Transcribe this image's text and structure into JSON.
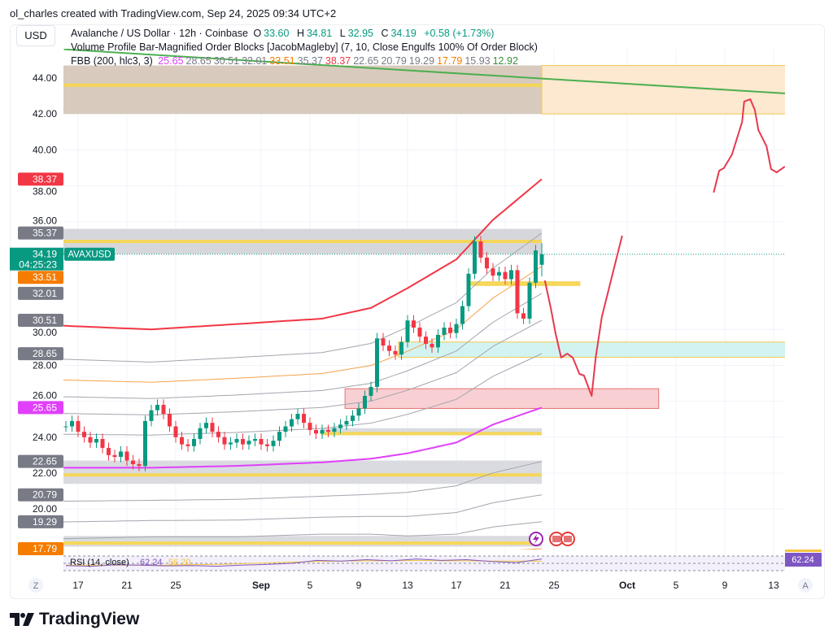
{
  "credit": "ol_charles created with TradingView.com, Sep 24, 2025 09:34 UTC+2",
  "currency_button": "USD",
  "legend": {
    "symbol": "Avalanche / US Dollar · 12h · Coinbase",
    "o_label": "O",
    "o": "33.60",
    "h_label": "H",
    "h": "34.81",
    "l_label": "L",
    "l": "32.95",
    "c_label": "C",
    "c": "34.19",
    "change": "+0.58 (+1.73%)",
    "indicator2": "Volume Profile Bar-Magnified Order Blocks [JacobMagleby] (7, 10, Close Engulfs 100% Of Order Block)",
    "fbb_label": "FBB (200, hlc3, 3)",
    "fbb_values": [
      {
        "v": "25.65",
        "color": "#e040fb"
      },
      {
        "v": "28.65",
        "color": "#787b86"
      },
      {
        "v": "30.51",
        "color": "#787b86"
      },
      {
        "v": "32.01",
        "color": "#787b86"
      },
      {
        "v": "33.51",
        "color": "#f57c00"
      },
      {
        "v": "35.37",
        "color": "#787b86"
      },
      {
        "v": "38.37",
        "color": "#f23645"
      },
      {
        "v": "22.65",
        "color": "#787b86"
      },
      {
        "v": "20.79",
        "color": "#787b86"
      },
      {
        "v": "19.29",
        "color": "#787b86"
      },
      {
        "v": "17.79",
        "color": "#f57c00"
      },
      {
        "v": "15.93",
        "color": "#787b86"
      },
      {
        "v": "12.92",
        "color": "#388e3c"
      }
    ]
  },
  "price_axis": {
    "ticks": [
      "44.00",
      "42.00",
      "40.00",
      "38.00",
      "36.00",
      "30.00",
      "28.00",
      "26.00",
      "24.00",
      "22.00",
      "20.00"
    ],
    "tags": [
      {
        "text": "38.37",
        "price": 38.37,
        "color": "#f23645"
      },
      {
        "text": "35.37",
        "price": 35.37,
        "color": "#787b86"
      },
      {
        "text": "33.51",
        "price": 33.51,
        "color": "#f57c00"
      },
      {
        "text": "32.01",
        "price": 32.01,
        "color": "#787b86"
      },
      {
        "text": "30.51",
        "price": 30.51,
        "color": "#787b86"
      },
      {
        "text": "28.65",
        "price": 28.65,
        "color": "#787b86"
      },
      {
        "text": "25.65",
        "price": 25.65,
        "color": "#e040fb"
      },
      {
        "text": "22.65",
        "price": 22.65,
        "color": "#787b86"
      },
      {
        "text": "20.79",
        "price": 20.79,
        "color": "#787b86"
      },
      {
        "text": "19.29",
        "price": 19.29,
        "color": "#787b86"
      },
      {
        "text": "17.79",
        "price": 17.79,
        "color": "#f57c00"
      }
    ],
    "last_price": "34.19",
    "countdown": "04:25:23",
    "symbol_tag": "AVAXUSD"
  },
  "time_axis": {
    "labels": [
      {
        "text": "17",
        "date": "2025-08-17"
      },
      {
        "text": "21",
        "date": "2025-08-21"
      },
      {
        "text": "25",
        "date": "2025-08-25"
      },
      {
        "text": "Sep",
        "date": "2025-09-01",
        "bold": true
      },
      {
        "text": "5",
        "date": "2025-09-05"
      },
      {
        "text": "9",
        "date": "2025-09-09"
      },
      {
        "text": "13",
        "date": "2025-09-13"
      },
      {
        "text": "17",
        "date": "2025-09-17"
      },
      {
        "text": "21",
        "date": "2025-09-21"
      },
      {
        "text": "25",
        "date": "2025-09-25"
      },
      {
        "text": "Oct",
        "date": "2025-10-01",
        "bold": true
      },
      {
        "text": "5",
        "date": "2025-10-05"
      },
      {
        "text": "9",
        "date": "2025-10-09"
      },
      {
        "text": "13",
        "date": "2025-10-13"
      }
    ],
    "left_button": "Z",
    "right_button": "A"
  },
  "rsi": {
    "label": "RSI (14, close)",
    "value": "62.24",
    "ma_value": "56.20",
    "axis_value": "62.24"
  },
  "brand": "TradingView",
  "colors": {
    "up": "#089981",
    "down": "#f23645",
    "basis": "#e040fb",
    "upper": "#f23645",
    "mid": "#f5a34a",
    "band": "#a3a6af",
    "trend": "#4caf50",
    "drawing": "#e63950",
    "rsi": "#7e57c2"
  },
  "chart_data": {
    "type": "candlestick",
    "ylim": [
      17.5,
      45.5
    ],
    "xlim": [
      "2025-08-15T20:00",
      "2025-10-15T00:00"
    ],
    "grid": true,
    "candles": {
      "start": "2025-08-16T00:00",
      "interval": "12h",
      "close": [
        24.6,
        24.9,
        24.3,
        24.0,
        23.7,
        23.9,
        23.4,
        23.0,
        22.9,
        23.2,
        22.7,
        22.5,
        22.4,
        24.9,
        25.5,
        25.8,
        25.3,
        24.6,
        24.0,
        23.6,
        23.5,
        23.9,
        24.5,
        24.8,
        24.3,
        24.0,
        23.6,
        23.7,
        23.9,
        23.6,
        23.8,
        23.9,
        23.6,
        23.5,
        23.8,
        24.3,
        24.6,
        25.0,
        25.3,
        24.8,
        24.4,
        24.2,
        24.4,
        24.3,
        24.5,
        24.7,
        24.9,
        25.2,
        25.6,
        26.3,
        26.8,
        29.5,
        29.1,
        28.8,
        28.6,
        29.3,
        30.5,
        30.1,
        29.6,
        29.2,
        29.0,
        29.7,
        30.1,
        29.8,
        30.3,
        31.3,
        33.1,
        34.9,
        34.0,
        33.4,
        33.0,
        33.2,
        32.8,
        33.3,
        30.9,
        30.6,
        32.6,
        34.4,
        33.6
      ],
      "last": {
        "open": 33.6,
        "high": 34.81,
        "low": 32.95,
        "close": 34.19
      }
    },
    "fbb": {
      "dates": [
        "2025-08-16",
        "2025-08-23",
        "2025-08-30",
        "2025-09-06",
        "2025-09-10",
        "2025-09-13",
        "2025-09-17",
        "2025-09-20",
        "2025-09-24"
      ],
      "basis": [
        22.3,
        22.3,
        22.4,
        22.6,
        22.8,
        23.1,
        23.7,
        24.7,
        25.65
      ],
      "deviation": [
        7.9,
        7.7,
        7.9,
        8.0,
        8.4,
        9.2,
        10.2,
        11.4,
        12.72
      ],
      "ratios": [
        0.236,
        0.382,
        0.5,
        0.618,
        0.764,
        1.0
      ]
    },
    "trendline": {
      "from": [
        "2025-08-15T20:00",
        45.6
      ],
      "to": [
        "2025-10-15T00:00",
        43.1
      ]
    },
    "order_blocks": [
      {
        "from": "2025-08-10T00:00",
        "to": "2025-09-24T00:00",
        "top": 44.7,
        "bottom": 42.0,
        "color": "#d8cbbd",
        "line": 43.6
      },
      {
        "from": "2025-09-24T00:00",
        "to": "2025-10-20T00:00",
        "top": 44.7,
        "bottom": 42.0,
        "color": "#fde9d0"
      },
      {
        "from": "2025-08-10T00:00",
        "to": "2025-09-24T00:00",
        "top": 35.6,
        "bottom": 34.2,
        "color": "#d6d7db",
        "line": 34.9
      },
      {
        "from": "2025-09-18T03:00",
        "to": "2025-09-27T03:00",
        "top": 32.65,
        "bottom": 32.45,
        "color": "#fff3c4",
        "line": 32.55
      },
      {
        "from": "2025-09-12T06:00",
        "to": "2025-10-20T00:00",
        "top": 29.3,
        "bottom": 28.45,
        "color": "#d3f3f1"
      },
      {
        "from": "2025-09-07T21:00",
        "to": "2025-10-03T14:00",
        "top": 26.7,
        "bottom": 25.6,
        "color": "#f8cfd2"
      },
      {
        "from": "2025-09-05T22:00",
        "to": "2025-09-24T00:00",
        "top": 24.5,
        "bottom": 24.1,
        "color": "#dadbe0",
        "line": 24.2
      },
      {
        "from": "2025-08-10T00:00",
        "to": "2025-09-24T00:00",
        "top": 22.7,
        "bottom": 21.4,
        "color": "#dadbe0",
        "line": 21.9
      },
      {
        "from": "2025-08-10T00:00",
        "to": "2025-09-24T00:00",
        "top": 18.5,
        "bottom": 17.9,
        "color": "#dadbe0",
        "line": 18.1
      }
    ],
    "drawings": [
      [
        [
          "2025-09-24T06:00",
          32.73
        ],
        [
          "2025-09-24T18:00",
          31.14
        ],
        [
          "2025-09-25T03:00",
          29.79
        ],
        [
          "2025-09-25T14:00",
          28.43
        ],
        [
          "2025-09-26T02:00",
          28.65
        ],
        [
          "2025-09-26T13:00",
          28.43
        ],
        [
          "2025-09-27T02:00",
          27.52
        ],
        [
          "2025-09-27T11:00",
          27.43
        ],
        [
          "2025-09-28T02:00",
          26.3
        ],
        [
          "2025-09-28T10:00",
          28.43
        ],
        [
          "2025-09-28T22:00",
          30.69
        ],
        [
          "2025-09-29T22:00",
          33.41
        ],
        [
          "2025-09-30T14:00",
          35.22
        ]
      ],
      [
        [
          "2025-10-08T02:00",
          37.62
        ],
        [
          "2025-10-08T13:00",
          38.84
        ],
        [
          "2025-10-08T22:00",
          38.98
        ],
        [
          "2025-10-09T14:00",
          39.74
        ],
        [
          "2025-10-10T10:00",
          41.56
        ],
        [
          "2025-10-10T14:00",
          42.69
        ],
        [
          "2025-10-11T02:00",
          42.82
        ],
        [
          "2025-10-11T11:00",
          42.23
        ],
        [
          "2025-10-11T18:00",
          41.1
        ],
        [
          "2025-10-12T10:00",
          40.2
        ],
        [
          "2025-10-12T19:00",
          38.93
        ],
        [
          "2025-10-13T06:00",
          38.75
        ],
        [
          "2025-10-13T22:00",
          39.07
        ]
      ]
    ],
    "rsi_series": {
      "from": "2025-08-16",
      "to": "2025-09-24",
      "values": [
        44,
        42,
        46,
        45,
        43,
        44,
        42,
        45,
        47,
        50,
        58,
        56,
        60,
        57,
        62,
        58,
        60,
        55,
        52,
        62
      ],
      "ma": [
        45,
        45,
        45,
        45,
        45,
        46,
        47,
        49,
        51,
        53,
        55,
        56,
        57,
        57,
        58,
        57,
        57,
        56,
        56,
        56
      ]
    }
  }
}
